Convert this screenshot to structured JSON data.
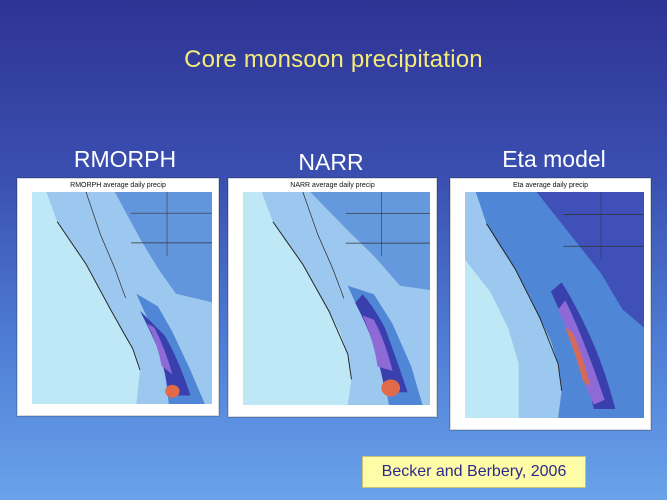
{
  "slide": {
    "title": "Core monsoon precipitation"
  },
  "panels": [
    {
      "label": "RMORPH",
      "map_title": "RMORPH average daily precip"
    },
    {
      "label": "NARR",
      "map_title": "NARR average daily precip"
    },
    {
      "label": "Eta model",
      "map_title": "Eta average daily precip"
    }
  ],
  "citation": "Becker and Berbery, 2006",
  "colors": {
    "title": "#f4ec7a",
    "ocean": "#bfe8f6",
    "light_precip": "#9cc7ee",
    "medium_precip": "#4f86d6",
    "heavy_precip": "#3a3fae",
    "core_precip": "#8e6ad6",
    "extreme_precip": "#e06a4a"
  }
}
